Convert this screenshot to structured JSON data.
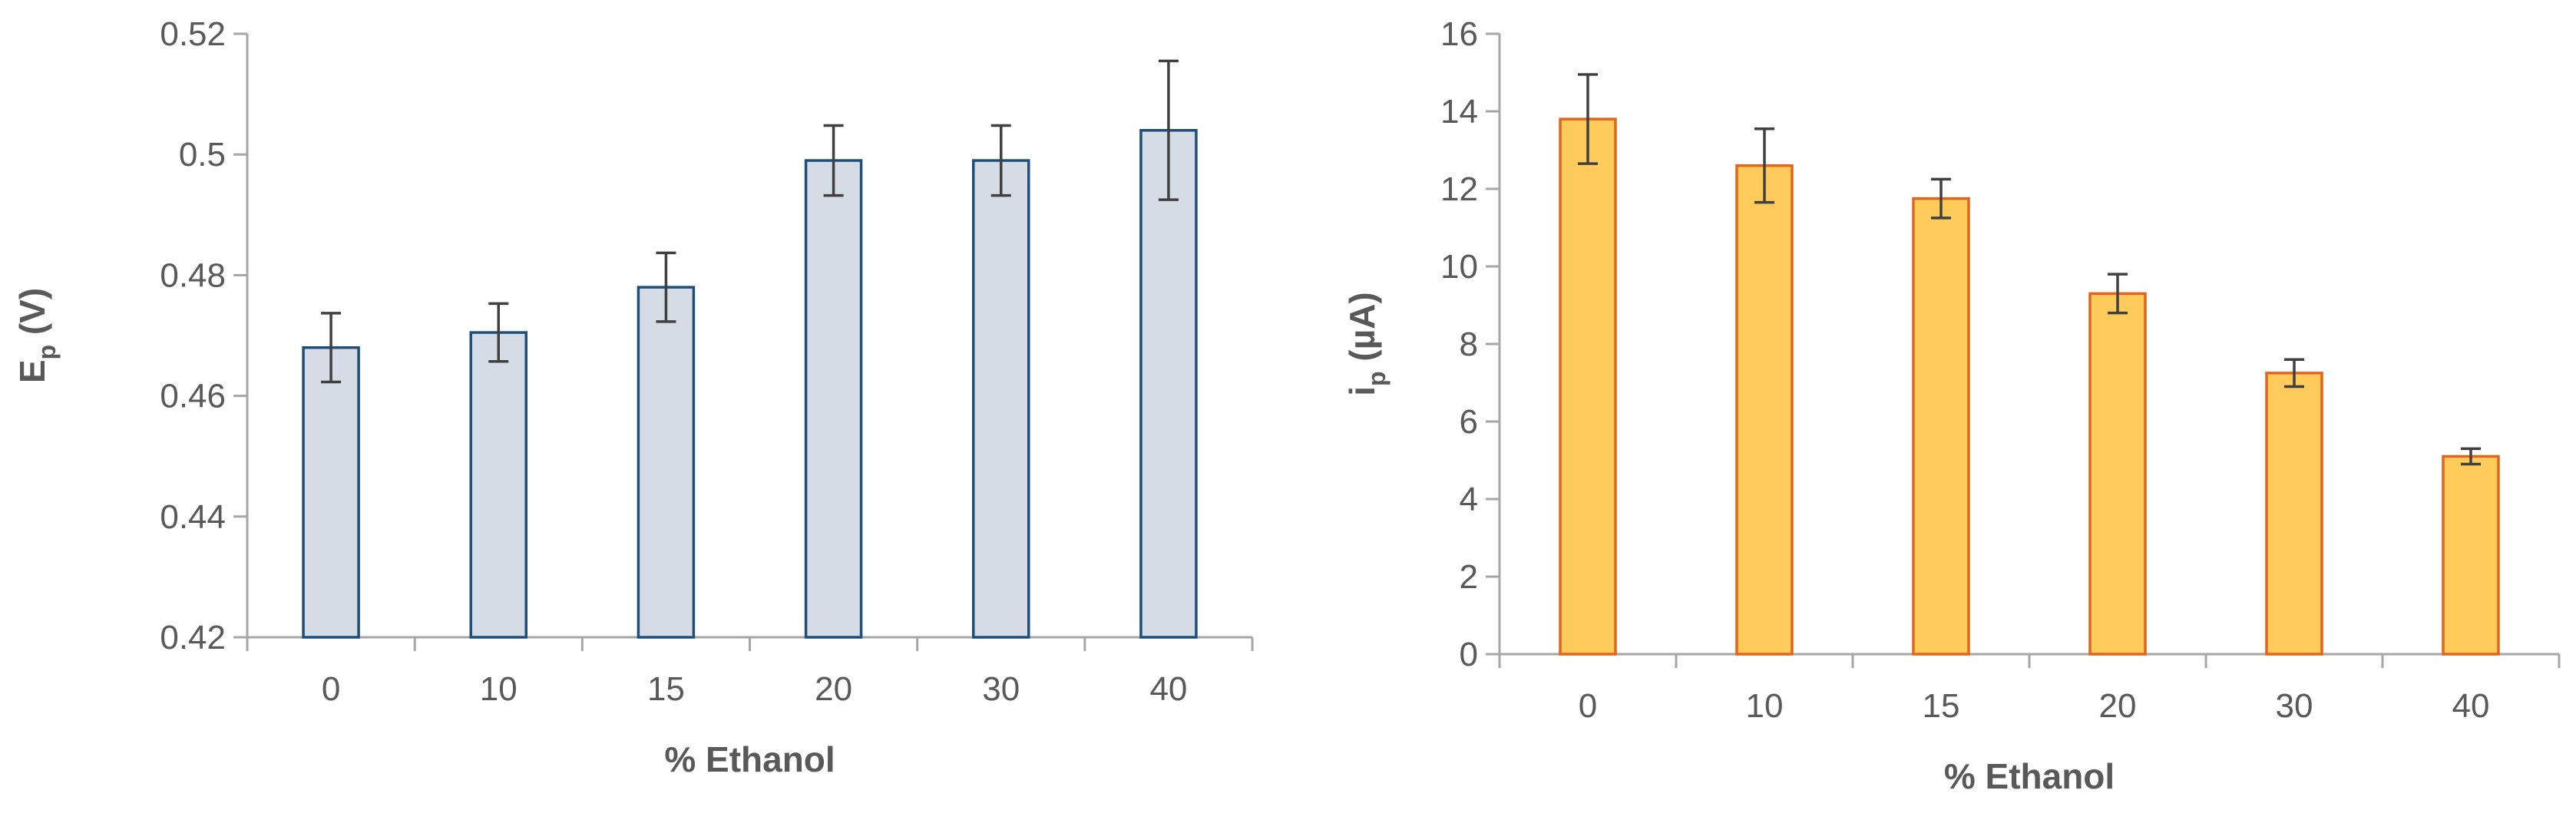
{
  "chart_data": [
    {
      "type": "bar",
      "categories": [
        "0",
        "10",
        "15",
        "20",
        "30",
        "40"
      ],
      "values": [
        0.468,
        0.4705,
        0.478,
        0.499,
        0.499,
        0.504
      ],
      "errors": [
        0.0057,
        0.0048,
        0.0057,
        0.0058,
        0.0058,
        0.0115
      ],
      "xlabel": "% Ethanol",
      "ylabel_main": "E",
      "ylabel_sub": "p",
      "ylabel_rest": " (V)",
      "ylim": [
        0.42,
        0.52
      ],
      "yticks": [
        0.42,
        0.44,
        0.46,
        0.48,
        0.5,
        0.52
      ],
      "ytick_labels": [
        "0.42",
        "0.44",
        "0.46",
        "0.48",
        "0.5",
        "0.52"
      ],
      "bar_fill": "#d6dce5",
      "bar_stroke": "#1f4e79",
      "grid": false,
      "legend": "none"
    },
    {
      "type": "bar",
      "categories": [
        "0",
        "10",
        "15",
        "20",
        "30",
        "40"
      ],
      "values": [
        13.8,
        12.6,
        11.75,
        9.3,
        7.25,
        5.1
      ],
      "errors": [
        1.15,
        0.95,
        0.5,
        0.5,
        0.35,
        0.2
      ],
      "xlabel": "% Ethanol",
      "ylabel_main": "i",
      "ylabel_sub": "p",
      "ylabel_rest": " (µA)",
      "ylim": [
        0,
        16
      ],
      "yticks": [
        0,
        2,
        4,
        6,
        8,
        10,
        12,
        14,
        16
      ],
      "ytick_labels": [
        "0",
        "2",
        "4",
        "6",
        "8",
        "10",
        "12",
        "14",
        "16"
      ],
      "bar_fill": "#ffc000",
      "bar_fill_display": "#ffcc5c",
      "bar_stroke": "#e0661e",
      "grid": false,
      "legend": "none"
    }
  ]
}
